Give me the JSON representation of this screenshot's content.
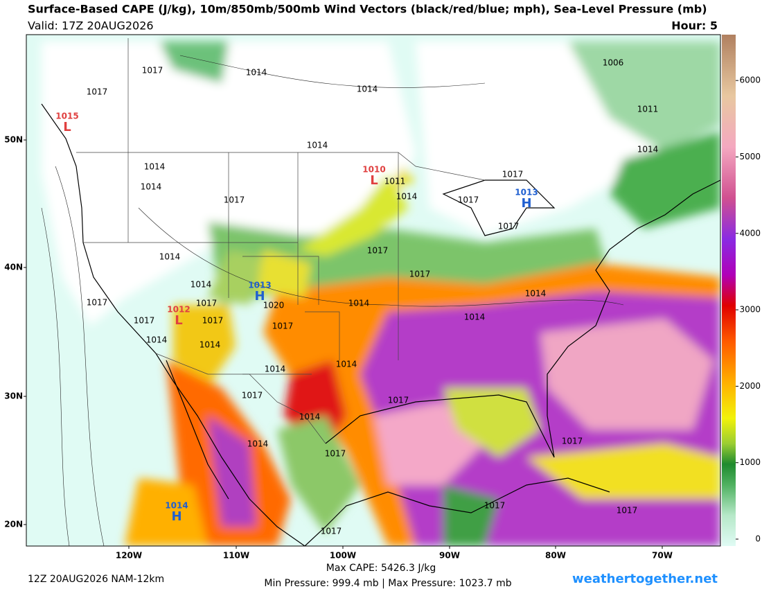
{
  "header": {
    "title": "Surface-Based CAPE (J/kg), 10m/850mb/500mb Wind Vectors (black/red/blue; mph), Sea-Level Pressure (mb)",
    "valid": "Valid: 17Z 20AUG2026",
    "hour": "Hour: 5"
  },
  "map": {
    "lat_labels": [
      "50N",
      "40N",
      "30N",
      "20N"
    ],
    "lon_labels": [
      "120W",
      "110W",
      "100W",
      "90W",
      "80W",
      "70W"
    ],
    "isobar_labels": [
      "1017",
      "1014",
      "1014",
      "1006",
      "1011",
      "1017",
      "1014",
      "1014",
      "1014",
      "1014",
      "1011",
      "1014",
      "1017",
      "1017",
      "1017",
      "1017",
      "1017",
      "1014",
      "1017",
      "1014",
      "1014",
      "1014",
      "1017",
      "1017",
      "1020",
      "1017",
      "1017",
      "1014",
      "1017",
      "1014",
      "1014",
      "1014",
      "1014",
      "1017",
      "1017",
      "1014",
      "1014",
      "1017",
      "1017",
      "1017",
      "1017",
      "1017"
    ],
    "highs": [
      {
        "value": "1013",
        "symbol": "H"
      },
      {
        "value": "1013",
        "symbol": "H"
      },
      {
        "value": "1014",
        "symbol": "H"
      }
    ],
    "lows": [
      {
        "value": "1015",
        "symbol": "L"
      },
      {
        "value": "1010",
        "symbol": "L"
      },
      {
        "value": "1012",
        "symbol": "L"
      }
    ]
  },
  "colorbar": {
    "range": [
      0,
      6600
    ],
    "ticks": [
      0,
      1000,
      2000,
      3000,
      4000,
      5000,
      6000
    ]
  },
  "footer": {
    "model": "12Z 20AUG2026 NAM-12km",
    "max_cape": "Max CAPE: 5426.3 J/kg",
    "pressure": "Min Pressure: 999.4 mb | Max Pressure: 1023.7 mb",
    "site": "weathertogether.net"
  }
}
